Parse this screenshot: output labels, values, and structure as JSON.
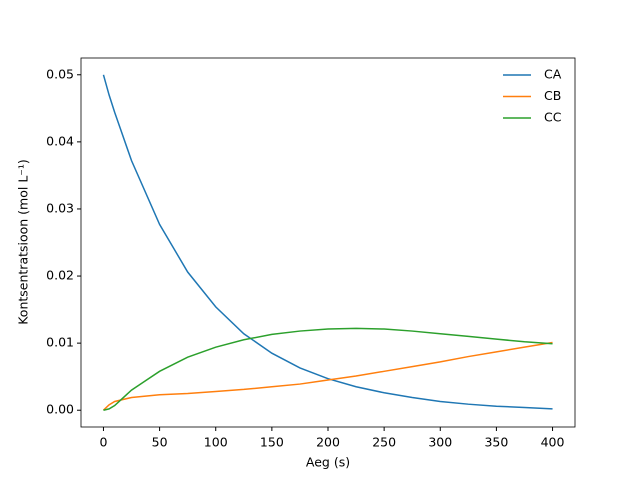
{
  "chart_data": {
    "type": "line",
    "xlabel": "Aeg (s)",
    "ylabel": "Kontsentratsioon (mol L⁻¹)",
    "x": [
      0,
      5,
      10,
      25,
      50,
      75,
      100,
      125,
      150,
      175,
      200,
      225,
      250,
      275,
      300,
      325,
      350,
      375,
      400
    ],
    "series": [
      {
        "name": "CA",
        "color": "#1f77b4",
        "values": [
          0.05,
          0.047,
          0.0444,
          0.0372,
          0.0277,
          0.0206,
          0.0154,
          0.0114,
          0.0085,
          0.0063,
          0.0047,
          0.0035,
          0.0026,
          0.0019,
          0.0013,
          0.0009,
          0.0006,
          0.0004,
          0.0002
        ]
      },
      {
        "name": "CB",
        "color": "#ff7f0e",
        "values": [
          0,
          0.0008,
          0.0013,
          0.0019,
          0.0023,
          0.0025,
          0.0028,
          0.0031,
          0.0035,
          0.0039,
          0.0045,
          0.0051,
          0.0058,
          0.0065,
          0.0072,
          0.008,
          0.0087,
          0.0094,
          0.0101
        ]
      },
      {
        "name": "CC",
        "color": "#2ca02c",
        "values": [
          0,
          0.0002,
          0.0007,
          0.003,
          0.0058,
          0.0079,
          0.0094,
          0.0105,
          0.0113,
          0.0118,
          0.0121,
          0.0122,
          0.0121,
          0.0118,
          0.0114,
          0.011,
          0.0106,
          0.0102,
          0.0099
        ]
      }
    ],
    "xlim": [
      -20,
      420
    ],
    "ylim": [
      -0.0025,
      0.0525
    ],
    "xticks": [
      0,
      50,
      100,
      150,
      200,
      250,
      300,
      350,
      400
    ],
    "yticks": [
      {
        "value": 0,
        "label": "0.00"
      },
      {
        "value": 0.01,
        "label": "0.01"
      },
      {
        "value": 0.02,
        "label": "0.02"
      },
      {
        "value": 0.03,
        "label": "0.03"
      },
      {
        "value": 0.04,
        "label": "0.04"
      },
      {
        "value": 0.05,
        "label": "0.05"
      }
    ],
    "legend": "upper right"
  }
}
